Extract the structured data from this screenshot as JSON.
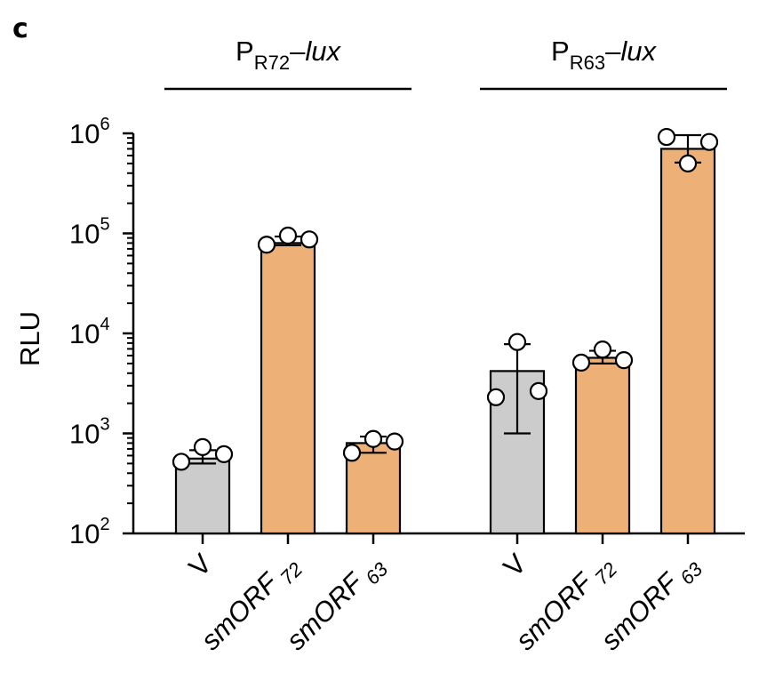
{
  "panel_letter": "c",
  "colors": {
    "control": "#cccccc",
    "treatment": "#edb076",
    "stroke": "#000000",
    "point_fill": "#ffffff"
  },
  "chart_data": {
    "type": "bar",
    "ylabel": "RLU",
    "yscale": "log",
    "ylim": [
      100,
      1000000
    ],
    "yticks": [
      {
        "value": 100,
        "base": "10",
        "exp": "2"
      },
      {
        "value": 1000,
        "base": "10",
        "exp": "3"
      },
      {
        "value": 10000,
        "base": "10",
        "exp": "4"
      },
      {
        "value": 100000,
        "base": "10",
        "exp": "5"
      },
      {
        "value": 1000000,
        "base": "10",
        "exp": "6"
      }
    ],
    "groups": [
      {
        "title_main": "P",
        "title_sub": "R72",
        "title_dash": "–",
        "title_italic": "lux",
        "bars": [
          {
            "cat": "V",
            "sub": "",
            "value": 560,
            "err_low": 500,
            "err_high": 680,
            "color": "control",
            "points": [
              520,
              730,
              620
            ]
          },
          {
            "cat": "smORF",
            "sub": "72",
            "value": 80000,
            "err_low": 76000,
            "err_high": 93000,
            "color": "treatment",
            "points": [
              77000,
              95000,
              87000
            ]
          },
          {
            "cat": "smORF",
            "sub": "63",
            "value": 800,
            "err_low": 640,
            "err_high": 930,
            "color": "treatment",
            "points": [
              640,
              880,
              830
            ]
          }
        ]
      },
      {
        "title_main": "P",
        "title_sub": "R63",
        "title_dash": "–",
        "title_italic": "lux",
        "bars": [
          {
            "cat": "V",
            "sub": "",
            "value": 4200,
            "err_low": 1000,
            "err_high": 7800,
            "color": "control",
            "points": [
              2300,
              8200,
              2650
            ]
          },
          {
            "cat": "smORF",
            "sub": "72",
            "value": 5700,
            "err_low": 5000,
            "err_high": 6700,
            "color": "treatment",
            "points": [
              5100,
              6900,
              5400
            ]
          },
          {
            "cat": "smORF",
            "sub": "63",
            "value": 700000,
            "err_low": 510000,
            "err_high": 960000,
            "color": "treatment",
            "points": [
              920000,
              500000,
              820000
            ]
          }
        ]
      }
    ]
  }
}
